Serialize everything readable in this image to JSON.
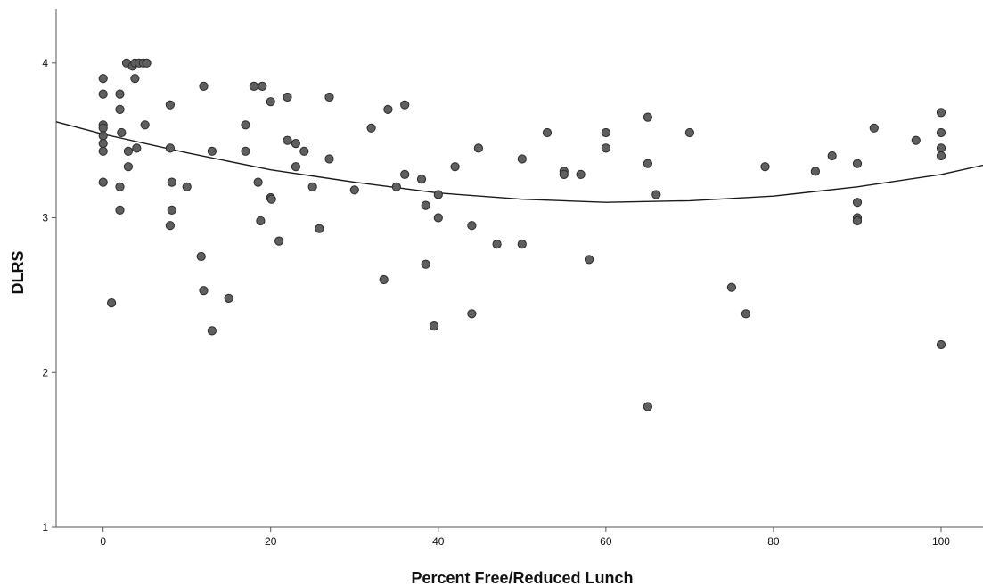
{
  "chart_data": {
    "type": "scatter",
    "title": "",
    "xlabel": "Percent Free/Reduced Lunch",
    "ylabel": "DLRS",
    "xlim": [
      -5.6,
      105
    ],
    "ylim": [
      1,
      4.35
    ],
    "xticks": [
      0,
      20,
      40,
      60,
      80,
      100
    ],
    "yticks": [
      1,
      2,
      3,
      4
    ],
    "grid": false,
    "legend": "none",
    "colors": {
      "point_fill": "#5f5f5f",
      "point_stroke": "#2b2b2b",
      "fit_line": "#1a1a1a",
      "axis": "#555555"
    },
    "fit_line": {
      "type": "quadratic",
      "x": [
        -5.6,
        0,
        10,
        20,
        30,
        40,
        50,
        60,
        70,
        80,
        90,
        100,
        105
      ],
      "y": [
        3.62,
        3.54,
        3.42,
        3.31,
        3.23,
        3.16,
        3.12,
        3.1,
        3.11,
        3.14,
        3.2,
        3.28,
        3.34
      ]
    },
    "points": [
      {
        "x": 0,
        "y": 3.9
      },
      {
        "x": 0,
        "y": 3.8
      },
      {
        "x": 0,
        "y": 3.6
      },
      {
        "x": 0,
        "y": 3.58
      },
      {
        "x": 0,
        "y": 3.53
      },
      {
        "x": 0,
        "y": 3.48
      },
      {
        "x": 0,
        "y": 3.43
      },
      {
        "x": 0,
        "y": 3.23
      },
      {
        "x": 1,
        "y": 2.45
      },
      {
        "x": 2,
        "y": 3.8
      },
      {
        "x": 2,
        "y": 3.7
      },
      {
        "x": 2,
        "y": 3.2
      },
      {
        "x": 2,
        "y": 3.05
      },
      {
        "x": 2.2,
        "y": 3.55
      },
      {
        "x": 2.8,
        "y": 4.0
      },
      {
        "x": 3,
        "y": 3.43
      },
      {
        "x": 3,
        "y": 3.33
      },
      {
        "x": 3.5,
        "y": 3.98
      },
      {
        "x": 3.8,
        "y": 4.0
      },
      {
        "x": 3.8,
        "y": 3.9
      },
      {
        "x": 4,
        "y": 3.45
      },
      {
        "x": 4.3,
        "y": 4.0
      },
      {
        "x": 4.8,
        "y": 4.0
      },
      {
        "x": 5.2,
        "y": 4.0
      },
      {
        "x": 5,
        "y": 3.6
      },
      {
        "x": 8,
        "y": 3.73
      },
      {
        "x": 8,
        "y": 3.45
      },
      {
        "x": 8.2,
        "y": 3.23
      },
      {
        "x": 8.2,
        "y": 3.05
      },
      {
        "x": 8,
        "y": 2.95
      },
      {
        "x": 10,
        "y": 3.2
      },
      {
        "x": 11.7,
        "y": 2.75
      },
      {
        "x": 12,
        "y": 3.85
      },
      {
        "x": 12,
        "y": 2.53
      },
      {
        "x": 13,
        "y": 3.43
      },
      {
        "x": 13,
        "y": 2.27
      },
      {
        "x": 15,
        "y": 2.48
      },
      {
        "x": 17,
        "y": 3.6
      },
      {
        "x": 17,
        "y": 3.43
      },
      {
        "x": 18,
        "y": 3.85
      },
      {
        "x": 18.5,
        "y": 3.23
      },
      {
        "x": 19,
        "y": 3.85
      },
      {
        "x": 18.8,
        "y": 2.98
      },
      {
        "x": 20,
        "y": 3.75
      },
      {
        "x": 20,
        "y": 3.13
      },
      {
        "x": 20.1,
        "y": 3.12
      },
      {
        "x": 21,
        "y": 2.85
      },
      {
        "x": 22,
        "y": 3.78
      },
      {
        "x": 22,
        "y": 3.5
      },
      {
        "x": 23,
        "y": 3.48
      },
      {
        "x": 23,
        "y": 3.33
      },
      {
        "x": 24,
        "y": 3.43
      },
      {
        "x": 25,
        "y": 3.2
      },
      {
        "x": 25.8,
        "y": 2.93
      },
      {
        "x": 27,
        "y": 3.78
      },
      {
        "x": 27,
        "y": 3.38
      },
      {
        "x": 30,
        "y": 3.18
      },
      {
        "x": 32,
        "y": 3.58
      },
      {
        "x": 33.5,
        "y": 2.6
      },
      {
        "x": 34,
        "y": 3.7
      },
      {
        "x": 35,
        "y": 3.2
      },
      {
        "x": 36,
        "y": 3.73
      },
      {
        "x": 36,
        "y": 3.28
      },
      {
        "x": 38,
        "y": 3.25
      },
      {
        "x": 38.5,
        "y": 3.08
      },
      {
        "x": 38.5,
        "y": 2.7
      },
      {
        "x": 39.5,
        "y": 2.3
      },
      {
        "x": 40,
        "y": 3.15
      },
      {
        "x": 40,
        "y": 3.0
      },
      {
        "x": 42,
        "y": 3.33
      },
      {
        "x": 44,
        "y": 2.95
      },
      {
        "x": 44,
        "y": 2.38
      },
      {
        "x": 44.8,
        "y": 3.45
      },
      {
        "x": 47,
        "y": 2.83
      },
      {
        "x": 50,
        "y": 3.38
      },
      {
        "x": 50,
        "y": 2.83
      },
      {
        "x": 53,
        "y": 3.55
      },
      {
        "x": 55,
        "y": 3.3
      },
      {
        "x": 55,
        "y": 3.28
      },
      {
        "x": 57,
        "y": 3.28
      },
      {
        "x": 58,
        "y": 2.73
      },
      {
        "x": 60,
        "y": 3.55
      },
      {
        "x": 60,
        "y": 3.45
      },
      {
        "x": 65,
        "y": 3.65
      },
      {
        "x": 65,
        "y": 3.35
      },
      {
        "x": 65,
        "y": 1.78
      },
      {
        "x": 66,
        "y": 3.15
      },
      {
        "x": 70,
        "y": 3.55
      },
      {
        "x": 75,
        "y": 2.55
      },
      {
        "x": 76.7,
        "y": 2.38
      },
      {
        "x": 79,
        "y": 3.33
      },
      {
        "x": 85,
        "y": 3.3
      },
      {
        "x": 87,
        "y": 3.4
      },
      {
        "x": 90,
        "y": 3.35
      },
      {
        "x": 90,
        "y": 3.1
      },
      {
        "x": 90,
        "y": 3.0
      },
      {
        "x": 90,
        "y": 2.98
      },
      {
        "x": 92,
        "y": 3.58
      },
      {
        "x": 97,
        "y": 3.5
      },
      {
        "x": 100,
        "y": 3.68
      },
      {
        "x": 100,
        "y": 3.55
      },
      {
        "x": 100,
        "y": 3.45
      },
      {
        "x": 100,
        "y": 3.4
      },
      {
        "x": 100,
        "y": 2.18
      }
    ]
  }
}
